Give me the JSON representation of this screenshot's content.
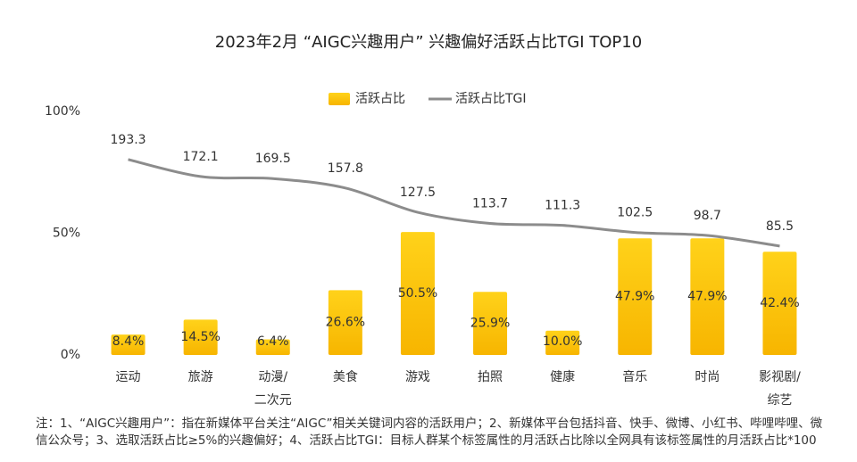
{
  "chart_data": {
    "type": "bar",
    "title": "2023年2月 “AIGC兴趣用户” 兴趣偏好活跃占比TGI TOP10",
    "categories": [
      "运动",
      "旅游",
      "动漫/\n二次元",
      "美食",
      "游戏",
      "拍照",
      "健康",
      "音乐",
      "时尚",
      "影视剧/\n综艺"
    ],
    "series": [
      {
        "name": "活跃占比",
        "type": "bar",
        "color": "#fcc312",
        "values": [
          8.4,
          14.5,
          6.4,
          26.6,
          50.5,
          25.9,
          10.0,
          47.9,
          47.9,
          42.4
        ],
        "value_labels": [
          "8.4%",
          "14.5%",
          "6.4%",
          "26.6%",
          "50.5%",
          "25.9%",
          "10.0%",
          "47.9%",
          "47.9%",
          "42.4%"
        ]
      },
      {
        "name": "活跃占比TGI",
        "type": "line",
        "color": "#8c8c8c",
        "axis": "y2",
        "values": [
          193.3,
          172.1,
          169.5,
          157.8,
          127.5,
          113.7,
          111.3,
          102.5,
          98.7,
          85.5
        ]
      }
    ],
    "ylim": [
      0,
      100
    ],
    "yticks": [
      {
        "value": 0,
        "label": "0%"
      },
      {
        "value": 50,
        "label": "50%"
      },
      {
        "value": 100,
        "label": "100%"
      }
    ],
    "y2lim": [
      -50,
      253
    ],
    "legend": "top",
    "footnote": "注：1、“AIGC兴趣用户”：指在新媒体平台关注“AIGC”相关关键词内容的活跃用户；2、新媒体平台包括抖音、快手、微博、小红书、哔哩哔哩、微信公众号；3、选取活跃占比≥5%的兴趣偏好；4、活跃占比TGI：目标人群某个标签属性的月活跃占比除以全网具有该标签属性的月活跃占比*100"
  }
}
